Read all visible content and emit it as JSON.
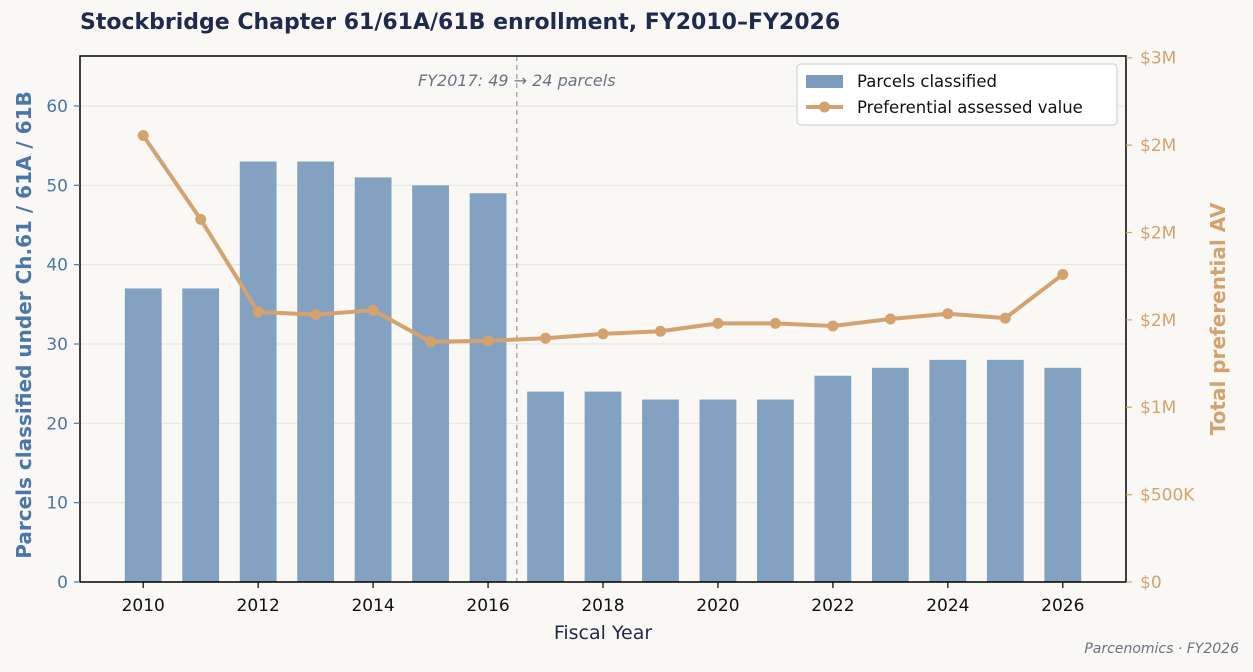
{
  "title": "Stockbridge Chapter 61/61A/61B enrollment, FY2010–FY2026",
  "credit": "Parcenomics · FY2026",
  "colors": {
    "bar": "#7c9cbd",
    "line": "#d4a26e",
    "left_axis": "#4a77a8",
    "right_axis": "#d4a26e",
    "title": "#1f2a4d",
    "annotation": "#6b7280"
  },
  "chart_data": {
    "type": "bar",
    "title": "Stockbridge Chapter 61/61A/61B enrollment, FY2010–FY2026",
    "xlabel": "Fiscal Year",
    "ylabel": "Parcels classified under Ch.61 / 61A / 61B",
    "y2label": "Total preferential AV",
    "x": [
      2010,
      2011,
      2012,
      2013,
      2014,
      2015,
      2016,
      2017,
      2018,
      2019,
      2020,
      2021,
      2022,
      2023,
      2024,
      2025,
      2026
    ],
    "xlim": [
      2008.9,
      2027.1
    ],
    "xticks": [
      "2010",
      "2012",
      "2014",
      "2016",
      "2018",
      "2020",
      "2022",
      "2024",
      "2026"
    ],
    "ylim": [
      0,
      66.3
    ],
    "yticks": [
      "0",
      "10",
      "20",
      "30",
      "40",
      "50",
      "60"
    ],
    "y2lim": [
      0,
      3010000
    ],
    "y2ticks": [
      {
        "value": 0,
        "label": "$0"
      },
      {
        "value": 500000,
        "label": "$500K"
      },
      {
        "value": 1000000,
        "label": "$1M"
      },
      {
        "value": 1500000,
        "label": "$2M"
      },
      {
        "value": 2000000,
        "label": "$2M"
      },
      {
        "value": 2500000,
        "label": "$2M"
      },
      {
        "value": 3000000,
        "label": "$3M"
      }
    ],
    "grid": true,
    "legend_position": "top-right",
    "series": [
      {
        "name": "Parcels classified",
        "type": "bar",
        "axis": "left",
        "values": [
          37,
          37,
          53,
          53,
          51,
          50,
          49,
          24,
          24,
          23,
          23,
          23,
          26,
          27,
          28,
          28,
          27
        ]
      },
      {
        "name": "Preferential assessed value",
        "type": "line",
        "axis": "right",
        "values": [
          2555000,
          2075000,
          1545000,
          1530000,
          1555000,
          1375000,
          1380000,
          1395000,
          1420000,
          1435000,
          1480000,
          1480000,
          1465000,
          1505000,
          1535000,
          1510000,
          1760000
        ]
      }
    ],
    "annotation": {
      "text": "FY2017: 49 → 24 parcels",
      "x": 2016.5
    }
  }
}
